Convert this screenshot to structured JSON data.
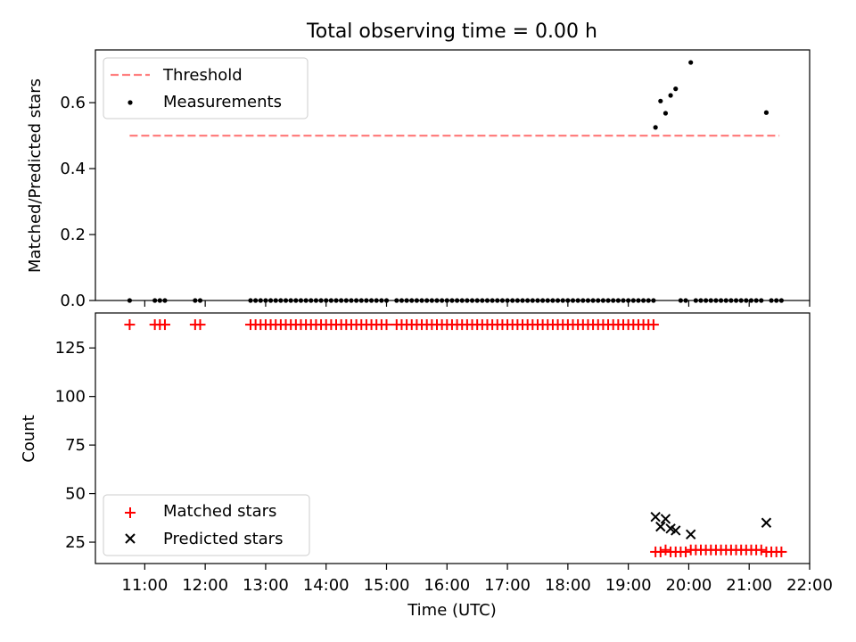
{
  "chart_data": [
    {
      "type": "scatter",
      "title": "Total observing time = 0.00 h",
      "xlabel": "",
      "ylabel": "Matched/Predicted stars",
      "xlim": [
        "10:11",
        "22:00"
      ],
      "ylim": [
        0,
        0.76
      ],
      "yticks": [
        0.0,
        0.2,
        0.4,
        0.6
      ],
      "ytick_labels": [
        "0.0",
        "0.2",
        "0.4",
        "0.6"
      ],
      "legend_position": "upper-left",
      "threshold": {
        "name": "Threshold",
        "value": 0.5,
        "x_range": [
          "10:45",
          "21:30"
        ],
        "color": "#ff7f7f",
        "style": "dashed"
      },
      "series": [
        {
          "name": "Measurements",
          "color": "#000000",
          "marker": "dot",
          "points": [
            [
              "10:45",
              0
            ],
            [
              "11:10",
              0
            ],
            [
              "11:15",
              0
            ],
            [
              "11:20",
              0
            ],
            [
              "11:50",
              0
            ],
            [
              "11:55",
              0
            ],
            [
              "12:45",
              0
            ],
            [
              "12:50",
              0
            ],
            [
              "12:55",
              0
            ],
            [
              "13:00",
              0
            ],
            [
              "13:05",
              0
            ],
            [
              "13:10",
              0
            ],
            [
              "13:15",
              0
            ],
            [
              "13:20",
              0
            ],
            [
              "13:25",
              0
            ],
            [
              "13:30",
              0
            ],
            [
              "13:35",
              0
            ],
            [
              "13:40",
              0
            ],
            [
              "13:45",
              0
            ],
            [
              "13:50",
              0
            ],
            [
              "13:55",
              0
            ],
            [
              "14:00",
              0
            ],
            [
              "14:05",
              0
            ],
            [
              "14:10",
              0
            ],
            [
              "14:15",
              0
            ],
            [
              "14:20",
              0
            ],
            [
              "14:25",
              0
            ],
            [
              "14:30",
              0
            ],
            [
              "14:35",
              0
            ],
            [
              "14:40",
              0
            ],
            [
              "14:45",
              0
            ],
            [
              "14:50",
              0
            ],
            [
              "14:55",
              0
            ],
            [
              "15:00",
              0
            ],
            [
              "15:10",
              0
            ],
            [
              "15:15",
              0
            ],
            [
              "15:20",
              0
            ],
            [
              "15:25",
              0
            ],
            [
              "15:30",
              0
            ],
            [
              "15:35",
              0
            ],
            [
              "15:40",
              0
            ],
            [
              "15:45",
              0
            ],
            [
              "15:50",
              0
            ],
            [
              "15:55",
              0
            ],
            [
              "16:00",
              0
            ],
            [
              "16:05",
              0
            ],
            [
              "16:10",
              0
            ],
            [
              "16:15",
              0
            ],
            [
              "16:20",
              0
            ],
            [
              "16:25",
              0
            ],
            [
              "16:30",
              0
            ],
            [
              "16:35",
              0
            ],
            [
              "16:40",
              0
            ],
            [
              "16:45",
              0
            ],
            [
              "16:50",
              0
            ],
            [
              "16:55",
              0
            ],
            [
              "17:00",
              0
            ],
            [
              "17:05",
              0
            ],
            [
              "17:10",
              0
            ],
            [
              "17:15",
              0
            ],
            [
              "17:20",
              0
            ],
            [
              "17:25",
              0
            ],
            [
              "17:30",
              0
            ],
            [
              "17:35",
              0
            ],
            [
              "17:40",
              0
            ],
            [
              "17:45",
              0
            ],
            [
              "17:50",
              0
            ],
            [
              "17:55",
              0
            ],
            [
              "18:00",
              0
            ],
            [
              "18:05",
              0
            ],
            [
              "18:10",
              0
            ],
            [
              "18:15",
              0
            ],
            [
              "18:20",
              0
            ],
            [
              "18:25",
              0
            ],
            [
              "18:30",
              0
            ],
            [
              "18:35",
              0
            ],
            [
              "18:40",
              0
            ],
            [
              "18:45",
              0
            ],
            [
              "18:50",
              0
            ],
            [
              "18:55",
              0
            ],
            [
              "19:00",
              0
            ],
            [
              "19:05",
              0
            ],
            [
              "19:10",
              0
            ],
            [
              "19:15",
              0
            ],
            [
              "19:20",
              0
            ],
            [
              "19:25",
              0
            ],
            [
              "19:27",
              0.525
            ],
            [
              "19:32",
              0.605
            ],
            [
              "19:37",
              0.568
            ],
            [
              "19:42",
              0.622
            ],
            [
              "19:47",
              0.642
            ],
            [
              "19:52",
              0
            ],
            [
              "19:57",
              0
            ],
            [
              "20:02",
              0.722
            ],
            [
              "20:07",
              0
            ],
            [
              "20:12",
              0
            ],
            [
              "20:17",
              0
            ],
            [
              "20:22",
              0
            ],
            [
              "20:27",
              0
            ],
            [
              "20:32",
              0
            ],
            [
              "20:37",
              0
            ],
            [
              "20:42",
              0
            ],
            [
              "20:47",
              0
            ],
            [
              "20:52",
              0
            ],
            [
              "20:57",
              0
            ],
            [
              "21:02",
              0
            ],
            [
              "21:07",
              0
            ],
            [
              "21:12",
              0
            ],
            [
              "21:17",
              0.57
            ],
            [
              "21:22",
              0
            ],
            [
              "21:27",
              0
            ],
            [
              "21:32",
              0
            ]
          ]
        }
      ]
    },
    {
      "type": "scatter",
      "title": "",
      "xlabel": "Time (UTC)",
      "ylabel": "Count",
      "xlim": [
        "10:11",
        "22:00"
      ],
      "ylim": [
        14,
        143
      ],
      "yticks": [
        25,
        50,
        75,
        100,
        125
      ],
      "ytick_labels": [
        "25",
        "50",
        "75",
        "100",
        "125"
      ],
      "xticks": [
        "11:00",
        "12:00",
        "13:00",
        "14:00",
        "15:00",
        "16:00",
        "17:00",
        "18:00",
        "19:00",
        "20:00",
        "21:00",
        "22:00"
      ],
      "legend_position": "lower-left",
      "series": [
        {
          "name": "Matched stars",
          "color": "#ff0000",
          "marker": "plus",
          "points": [
            [
              "10:45",
              137
            ],
            [
              "11:10",
              137
            ],
            [
              "11:15",
              137
            ],
            [
              "11:20",
              137
            ],
            [
              "11:50",
              137
            ],
            [
              "11:55",
              137
            ],
            [
              "12:45",
              137
            ],
            [
              "12:50",
              137
            ],
            [
              "12:55",
              137
            ],
            [
              "13:00",
              137
            ],
            [
              "13:05",
              137
            ],
            [
              "13:10",
              137
            ],
            [
              "13:15",
              137
            ],
            [
              "13:20",
              137
            ],
            [
              "13:25",
              137
            ],
            [
              "13:30",
              137
            ],
            [
              "13:35",
              137
            ],
            [
              "13:40",
              137
            ],
            [
              "13:45",
              137
            ],
            [
              "13:50",
              137
            ],
            [
              "13:55",
              137
            ],
            [
              "14:00",
              137
            ],
            [
              "14:05",
              137
            ],
            [
              "14:10",
              137
            ],
            [
              "14:15",
              137
            ],
            [
              "14:20",
              137
            ],
            [
              "14:25",
              137
            ],
            [
              "14:30",
              137
            ],
            [
              "14:35",
              137
            ],
            [
              "14:40",
              137
            ],
            [
              "14:45",
              137
            ],
            [
              "14:50",
              137
            ],
            [
              "14:55",
              137
            ],
            [
              "15:00",
              137
            ],
            [
              "15:10",
              137
            ],
            [
              "15:15",
              137
            ],
            [
              "15:20",
              137
            ],
            [
              "15:25",
              137
            ],
            [
              "15:30",
              137
            ],
            [
              "15:35",
              137
            ],
            [
              "15:40",
              137
            ],
            [
              "15:45",
              137
            ],
            [
              "15:50",
              137
            ],
            [
              "15:55",
              137
            ],
            [
              "16:00",
              137
            ],
            [
              "16:05",
              137
            ],
            [
              "16:10",
              137
            ],
            [
              "16:15",
              137
            ],
            [
              "16:20",
              137
            ],
            [
              "16:25",
              137
            ],
            [
              "16:30",
              137
            ],
            [
              "16:35",
              137
            ],
            [
              "16:40",
              137
            ],
            [
              "16:45",
              137
            ],
            [
              "16:50",
              137
            ],
            [
              "16:55",
              137
            ],
            [
              "17:00",
              137
            ],
            [
              "17:05",
              137
            ],
            [
              "17:10",
              137
            ],
            [
              "17:15",
              137
            ],
            [
              "17:20",
              137
            ],
            [
              "17:25",
              137
            ],
            [
              "17:30",
              137
            ],
            [
              "17:35",
              137
            ],
            [
              "17:40",
              137
            ],
            [
              "17:45",
              137
            ],
            [
              "17:50",
              137
            ],
            [
              "17:55",
              137
            ],
            [
              "18:00",
              137
            ],
            [
              "18:05",
              137
            ],
            [
              "18:10",
              137
            ],
            [
              "18:15",
              137
            ],
            [
              "18:20",
              137
            ],
            [
              "18:25",
              137
            ],
            [
              "18:30",
              137
            ],
            [
              "18:35",
              137
            ],
            [
              "18:40",
              137
            ],
            [
              "18:45",
              137
            ],
            [
              "18:50",
              137
            ],
            [
              "18:55",
              137
            ],
            [
              "19:00",
              137
            ],
            [
              "19:05",
              137
            ],
            [
              "19:10",
              137
            ],
            [
              "19:15",
              137
            ],
            [
              "19:20",
              137
            ],
            [
              "19:25",
              137
            ],
            [
              "19:27",
              20
            ],
            [
              "19:32",
              20
            ],
            [
              "19:37",
              21
            ],
            [
              "19:42",
              20
            ],
            [
              "19:47",
              20
            ],
            [
              "19:52",
              20
            ],
            [
              "19:57",
              20
            ],
            [
              "20:02",
              21
            ],
            [
              "20:07",
              21
            ],
            [
              "20:12",
              21
            ],
            [
              "20:17",
              21
            ],
            [
              "20:22",
              21
            ],
            [
              "20:27",
              21
            ],
            [
              "20:32",
              21
            ],
            [
              "20:37",
              21
            ],
            [
              "20:42",
              21
            ],
            [
              "20:47",
              21
            ],
            [
              "20:52",
              21
            ],
            [
              "20:57",
              21
            ],
            [
              "21:02",
              21
            ],
            [
              "21:07",
              21
            ],
            [
              "21:12",
              21
            ],
            [
              "21:17",
              20
            ],
            [
              "21:22",
              20
            ],
            [
              "21:27",
              20
            ],
            [
              "21:32",
              20
            ]
          ]
        },
        {
          "name": "Predicted stars",
          "color": "#000000",
          "marker": "x",
          "points": [
            [
              "19:27",
              38
            ],
            [
              "19:32",
              33
            ],
            [
              "19:37",
              37
            ],
            [
              "19:42",
              32
            ],
            [
              "19:47",
              31
            ],
            [
              "20:02",
              29
            ],
            [
              "21:17",
              35
            ]
          ]
        }
      ]
    }
  ]
}
